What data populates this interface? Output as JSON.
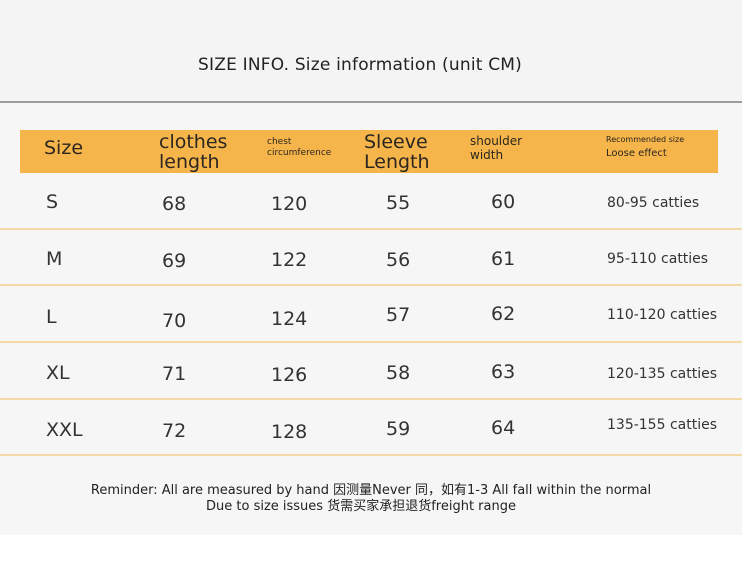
{
  "title": "SIZE INFO. Size information (unit CM)",
  "columns": {
    "size": "Size",
    "length_line1": "clothes",
    "length_line2": "length",
    "chest_line1": "chest",
    "chest_line2": "circumference",
    "sleeve_line1": "Sleeve",
    "sleeve_line2": "Length",
    "shoulder_line1": "shoulder",
    "shoulder_line2": "width",
    "recommended_line1": "Recommended size",
    "recommended_line2": "Loose effect"
  },
  "rows": [
    {
      "size": "S",
      "length": "68",
      "chest": "120",
      "sleeve": "55",
      "shoulder": "60",
      "recommended": "80-95 catties"
    },
    {
      "size": "M",
      "length": "69",
      "chest": "122",
      "sleeve": "56",
      "shoulder": "61",
      "recommended": "95-110 catties"
    },
    {
      "size": "L",
      "length": "70",
      "chest": "124",
      "sleeve": "57",
      "shoulder": "62",
      "recommended": "110-120 catties"
    },
    {
      "size": "XL",
      "length": "71",
      "chest": "126",
      "sleeve": "58",
      "shoulder": "63",
      "recommended": "120-135 catties"
    },
    {
      "size": "XXL",
      "length": "72",
      "chest": "128",
      "sleeve": "59",
      "shoulder": "64",
      "recommended": "135-155 catties"
    }
  ],
  "reminder": {
    "line1": "Reminder: All are measured by hand 因测量Never 同，如有1-3 All fall within the normal",
    "line2": "Due to size issues 货需买家承担退货freight range"
  },
  "colors": {
    "header_bg": "#f6b54b",
    "row_divider": "#f4d9a8",
    "top_rule": "#9d9d9d"
  }
}
